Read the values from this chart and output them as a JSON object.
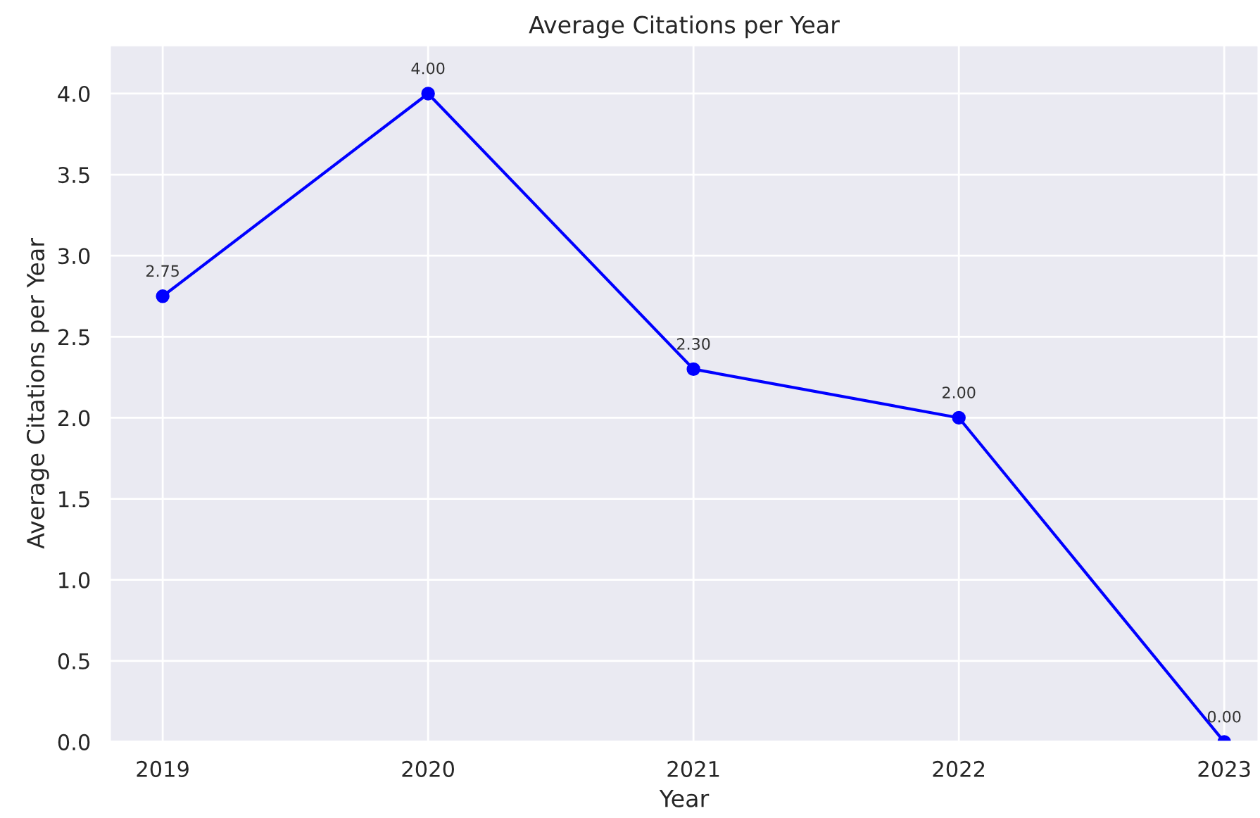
{
  "chart_data": {
    "type": "line",
    "title": "Average Citations per Year",
    "xlabel": "Year",
    "ylabel": "Average Citations per Year",
    "x": [
      2019,
      2020,
      2021,
      2022,
      2023
    ],
    "series": [
      {
        "color": "#0000ff",
        "values": [
          2.75,
          4.0,
          2.3,
          2.0,
          0.0
        ],
        "value_labels": [
          "2.75",
          "4.00",
          "2.30",
          "2.00",
          "0.00"
        ]
      }
    ],
    "xlim": [
      2018.8,
      2023.13
    ],
    "xticks": [
      2019,
      2020,
      2021,
      2022,
      2023
    ],
    "ylim": [
      0,
      4.3
    ],
    "yticks": [
      {
        "value": 0,
        "label": "0.0"
      },
      {
        "value": 0.5,
        "label": "0.5"
      },
      {
        "value": 1,
        "label": "1.0"
      },
      {
        "value": 1.5,
        "label": "1.5"
      },
      {
        "value": 2,
        "label": "2.0"
      },
      {
        "value": 2.5,
        "label": "2.5"
      },
      {
        "value": 3,
        "label": "3.0"
      },
      {
        "value": 3.5,
        "label": "3.5"
      },
      {
        "value": 4,
        "label": "4.0"
      }
    ],
    "grid": true,
    "marker": "circle",
    "line_style": "solid"
  }
}
